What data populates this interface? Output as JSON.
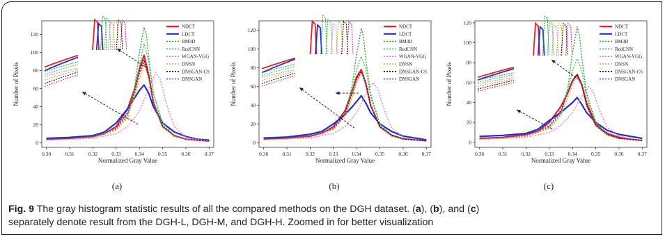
{
  "caption": {
    "label": "Fig. 9",
    "part1": " The gray histogram statistic results of all the compared methods on the DGH dataset. (",
    "a": "a",
    "part2": "), (",
    "b": "b",
    "part3": "), and (",
    "c": "c",
    "part4": ")",
    "line2": "separately denote result from the DGH-L, DGH-M, and DGH-H. Zoomed in for better visualization"
  },
  "colors": {
    "NDCT": "#e8202a",
    "LDCT": "#2330d0",
    "BM3D": "#2ca02c",
    "RedCNN": "#3fc85a",
    "WGAN-VGG": "#e377c2",
    "DNSN": "#bcbd22",
    "DNSGAN-CS": "#111111",
    "DNSGAN": "#d62784"
  },
  "chart_data": [
    {
      "type": "line",
      "panel_label": "(a)",
      "xlabel": "Normalized Gray Value",
      "ylabel": "Number of Pixels",
      "xlim": [
        0.298,
        0.372
      ],
      "ylim": [
        -5,
        135
      ],
      "xticks": [
        "0.30",
        "0.31",
        "0.32",
        "0.33",
        "0.34",
        "0.35",
        "0.36",
        "0.37"
      ],
      "yticks": [
        "0",
        "20",
        "40",
        "60",
        "80",
        "100",
        "120"
      ],
      "legend": [
        "NDCT",
        "LDCT",
        "BM3D",
        "RedCNN",
        "WGAN-VGG",
        "DNSN",
        "DNSGAN-CS",
        "DNSGAN"
      ],
      "legend_position": "top-right",
      "series": [
        {
          "name": "NDCT",
          "x": [
            0.3,
            0.31,
            0.32,
            0.325,
            0.33,
            0.335,
            0.338,
            0.34,
            0.342,
            0.344,
            0.346,
            0.35,
            0.355,
            0.36,
            0.365,
            0.37
          ],
          "y": [
            4,
            5,
            7,
            10,
            18,
            38,
            60,
            82,
            97,
            75,
            45,
            18,
            8,
            4,
            3,
            2
          ]
        },
        {
          "name": "LDCT",
          "x": [
            0.3,
            0.31,
            0.32,
            0.325,
            0.33,
            0.335,
            0.338,
            0.34,
            0.342,
            0.344,
            0.346,
            0.35,
            0.355,
            0.36,
            0.365,
            0.37
          ],
          "y": [
            5,
            6,
            8,
            12,
            22,
            38,
            50,
            58,
            64,
            55,
            40,
            22,
            12,
            7,
            4,
            3
          ]
        },
        {
          "name": "BM3D",
          "x": [
            0.3,
            0.31,
            0.32,
            0.33,
            0.335,
            0.338,
            0.34,
            0.342,
            0.343,
            0.344,
            0.346,
            0.35,
            0.355,
            0.36,
            0.37
          ],
          "y": [
            3,
            4,
            6,
            14,
            30,
            62,
            100,
            128,
            120,
            95,
            55,
            20,
            7,
            4,
            2
          ]
        },
        {
          "name": "RedCNN",
          "x": [
            0.3,
            0.31,
            0.32,
            0.33,
            0.335,
            0.338,
            0.34,
            0.342,
            0.344,
            0.346,
            0.35,
            0.355,
            0.36,
            0.37
          ],
          "y": [
            3,
            4,
            6,
            15,
            32,
            58,
            85,
            110,
            90,
            55,
            22,
            8,
            4,
            2
          ]
        },
        {
          "name": "WGAN-VGG",
          "x": [
            0.3,
            0.31,
            0.32,
            0.33,
            0.335,
            0.34,
            0.344,
            0.347,
            0.349,
            0.352,
            0.355,
            0.36,
            0.37
          ],
          "y": [
            3,
            4,
            5,
            10,
            18,
            35,
            60,
            78,
            70,
            40,
            18,
            6,
            2
          ]
        },
        {
          "name": "DNSN",
          "x": [
            0.3,
            0.31,
            0.32,
            0.33,
            0.335,
            0.338,
            0.34,
            0.342,
            0.344,
            0.346,
            0.35,
            0.355,
            0.36,
            0.37
          ],
          "y": [
            3,
            4,
            6,
            14,
            28,
            52,
            70,
            88,
            72,
            45,
            18,
            7,
            4,
            2
          ]
        },
        {
          "name": "DNSGAN-CS",
          "x": [
            0.3,
            0.31,
            0.32,
            0.33,
            0.335,
            0.338,
            0.34,
            0.342,
            0.344,
            0.346,
            0.35,
            0.355,
            0.36,
            0.37
          ],
          "y": [
            4,
            5,
            7,
            16,
            34,
            56,
            78,
            92,
            74,
            44,
            18,
            8,
            4,
            2
          ]
        },
        {
          "name": "DNSGAN",
          "x": [
            0.3,
            0.31,
            0.32,
            0.33,
            0.335,
            0.338,
            0.34,
            0.342,
            0.344,
            0.346,
            0.35,
            0.355,
            0.36,
            0.37
          ],
          "y": [
            4,
            5,
            7,
            16,
            33,
            55,
            76,
            90,
            72,
            43,
            18,
            8,
            4,
            2
          ]
        }
      ]
    },
    {
      "type": "line",
      "panel_label": "(b)",
      "xlabel": "Normalized Gray Value",
      "ylabel": "Number of Pixels",
      "xlim": [
        0.298,
        0.372
      ],
      "ylim": [
        -5,
        130
      ],
      "xticks": [
        "0.30",
        "0.31",
        "0.32",
        "0.33",
        "0.34",
        "0.35",
        "0.36",
        "0.37"
      ],
      "yticks": [
        "0",
        "20",
        "40",
        "60",
        "80",
        "100",
        "120"
      ],
      "legend": [
        "NDCT",
        "LDCT",
        "BM3D",
        "RedCNN",
        "WGAN-VGG",
        "DNSN",
        "DNSGAN-CS",
        "DNSGAN"
      ],
      "legend_position": "top-right",
      "series": [
        {
          "name": "NDCT",
          "x": [
            0.3,
            0.31,
            0.32,
            0.325,
            0.33,
            0.335,
            0.338,
            0.34,
            0.342,
            0.344,
            0.346,
            0.35,
            0.355,
            0.36,
            0.365,
            0.37
          ],
          "y": [
            4,
            5,
            7,
            10,
            17,
            34,
            55,
            70,
            78,
            62,
            40,
            17,
            8,
            4,
            3,
            2
          ]
        },
        {
          "name": "LDCT",
          "x": [
            0.3,
            0.31,
            0.32,
            0.325,
            0.33,
            0.335,
            0.338,
            0.34,
            0.342,
            0.344,
            0.346,
            0.35,
            0.355,
            0.36,
            0.365,
            0.37
          ],
          "y": [
            5,
            6,
            9,
            12,
            20,
            30,
            38,
            44,
            50,
            42,
            32,
            20,
            12,
            7,
            5,
            3
          ]
        },
        {
          "name": "BM3D",
          "x": [
            0.3,
            0.31,
            0.32,
            0.33,
            0.335,
            0.338,
            0.34,
            0.342,
            0.343,
            0.344,
            0.346,
            0.35,
            0.355,
            0.36,
            0.37
          ],
          "y": [
            3,
            4,
            6,
            14,
            30,
            60,
            95,
            122,
            112,
            88,
            52,
            20,
            7,
            4,
            2
          ]
        },
        {
          "name": "RedCNN",
          "x": [
            0.3,
            0.31,
            0.32,
            0.33,
            0.335,
            0.338,
            0.34,
            0.342,
            0.344,
            0.346,
            0.35,
            0.355,
            0.36,
            0.37
          ],
          "y": [
            3,
            4,
            6,
            15,
            30,
            54,
            78,
            92,
            78,
            48,
            20,
            8,
            4,
            2
          ]
        },
        {
          "name": "WGAN-VGG",
          "x": [
            0.3,
            0.31,
            0.32,
            0.33,
            0.335,
            0.34,
            0.344,
            0.347,
            0.349,
            0.352,
            0.355,
            0.36,
            0.37
          ],
          "y": [
            3,
            4,
            5,
            10,
            17,
            32,
            52,
            64,
            58,
            34,
            16,
            6,
            2
          ]
        },
        {
          "name": "DNSN",
          "x": [
            0.3,
            0.31,
            0.32,
            0.33,
            0.335,
            0.338,
            0.34,
            0.342,
            0.344,
            0.346,
            0.35,
            0.355,
            0.36,
            0.37
          ],
          "y": [
            3,
            4,
            6,
            14,
            27,
            48,
            64,
            76,
            64,
            40,
            17,
            7,
            4,
            2
          ]
        },
        {
          "name": "DNSGAN-CS",
          "x": [
            0.3,
            0.31,
            0.32,
            0.33,
            0.335,
            0.338,
            0.34,
            0.342,
            0.344,
            0.346,
            0.35,
            0.355,
            0.36,
            0.37
          ],
          "y": [
            4,
            5,
            7,
            15,
            31,
            52,
            68,
            76,
            64,
            40,
            17,
            8,
            4,
            2
          ]
        },
        {
          "name": "DNSGAN",
          "x": [
            0.3,
            0.31,
            0.32,
            0.33,
            0.335,
            0.338,
            0.34,
            0.342,
            0.344,
            0.346,
            0.35,
            0.355,
            0.36,
            0.37
          ],
          "y": [
            4,
            5,
            7,
            15,
            30,
            51,
            67,
            75,
            63,
            39,
            17,
            8,
            4,
            2
          ]
        }
      ]
    },
    {
      "type": "line",
      "panel_label": "(c)",
      "xlabel": "Normalized Gray Value",
      "ylabel": "Number of Pixels",
      "xlim": [
        0.298,
        0.372
      ],
      "ylim": [
        -5,
        122
      ],
      "xticks": [
        "0.30",
        "0.31",
        "0.32",
        "0.33",
        "0.34",
        "0.35",
        "0.36",
        "0.37"
      ],
      "yticks": [
        "0",
        "20",
        "40",
        "60",
        "80",
        "100",
        "120"
      ],
      "legend": [
        "NDCT",
        "LDCT",
        "BM3D",
        "RedCNN",
        "WGAN-VGG",
        "DNSN",
        "DNSGAN-CS",
        "DNSGAN"
      ],
      "legend_position": "top-right",
      "series": [
        {
          "name": "NDCT",
          "x": [
            0.3,
            0.31,
            0.32,
            0.325,
            0.33,
            0.335,
            0.338,
            0.34,
            0.342,
            0.344,
            0.346,
            0.35,
            0.355,
            0.36,
            0.365,
            0.37
          ],
          "y": [
            4,
            5,
            8,
            11,
            20,
            36,
            50,
            62,
            68,
            58,
            40,
            18,
            9,
            5,
            3,
            2
          ]
        },
        {
          "name": "LDCT",
          "x": [
            0.3,
            0.31,
            0.32,
            0.325,
            0.33,
            0.335,
            0.338,
            0.34,
            0.342,
            0.344,
            0.346,
            0.35,
            0.355,
            0.36,
            0.365,
            0.37
          ],
          "y": [
            6,
            7,
            9,
            13,
            22,
            30,
            36,
            40,
            45,
            38,
            30,
            20,
            12,
            8,
            6,
            4
          ]
        },
        {
          "name": "BM3D",
          "x": [
            0.3,
            0.31,
            0.32,
            0.33,
            0.335,
            0.338,
            0.34,
            0.342,
            0.343,
            0.344,
            0.346,
            0.35,
            0.355,
            0.36,
            0.37
          ],
          "y": [
            3,
            4,
            6,
            14,
            28,
            55,
            90,
            116,
            108,
            85,
            50,
            20,
            7,
            4,
            2
          ]
        },
        {
          "name": "RedCNN",
          "x": [
            0.3,
            0.31,
            0.32,
            0.33,
            0.335,
            0.338,
            0.34,
            0.342,
            0.344,
            0.346,
            0.35,
            0.355,
            0.36,
            0.37
          ],
          "y": [
            3,
            4,
            6,
            15,
            30,
            52,
            72,
            84,
            72,
            46,
            20,
            8,
            4,
            2
          ]
        },
        {
          "name": "WGAN-VGG",
          "x": [
            0.3,
            0.31,
            0.32,
            0.33,
            0.335,
            0.34,
            0.344,
            0.347,
            0.349,
            0.352,
            0.355,
            0.36,
            0.37
          ],
          "y": [
            3,
            4,
            5,
            10,
            17,
            30,
            46,
            56,
            50,
            30,
            15,
            6,
            2
          ]
        },
        {
          "name": "DNSN",
          "x": [
            0.3,
            0.31,
            0.32,
            0.33,
            0.335,
            0.338,
            0.34,
            0.342,
            0.344,
            0.346,
            0.35,
            0.355,
            0.36,
            0.37
          ],
          "y": [
            3,
            4,
            6,
            14,
            27,
            45,
            58,
            66,
            56,
            36,
            16,
            7,
            4,
            2
          ]
        },
        {
          "name": "DNSGAN-CS",
          "x": [
            0.3,
            0.31,
            0.32,
            0.33,
            0.335,
            0.338,
            0.34,
            0.342,
            0.344,
            0.346,
            0.35,
            0.355,
            0.36,
            0.37
          ],
          "y": [
            4,
            5,
            7,
            16,
            32,
            50,
            62,
            68,
            58,
            38,
            17,
            8,
            4,
            2
          ]
        },
        {
          "name": "DNSGAN",
          "x": [
            0.3,
            0.31,
            0.32,
            0.33,
            0.335,
            0.338,
            0.34,
            0.342,
            0.344,
            0.346,
            0.35,
            0.355,
            0.36,
            0.37
          ],
          "y": [
            4,
            5,
            7,
            16,
            31,
            49,
            61,
            67,
            57,
            37,
            17,
            8,
            4,
            2
          ]
        }
      ]
    }
  ]
}
